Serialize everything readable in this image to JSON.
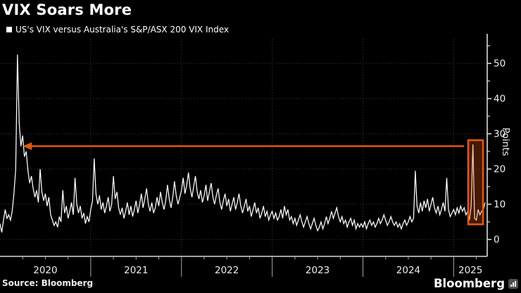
{
  "header": {
    "title": "VIX Soars More",
    "legend_label": "US's VIX versus Australia's S&P/ASX 200 VIX Index"
  },
  "footer": {
    "source": "Source: Bloomberg",
    "brand": "Bloomberg"
  },
  "colors": {
    "background": "#000000",
    "line": "#ffffff",
    "accent_orange": "#e4570c",
    "highlight_fill_opacity": 0.3,
    "grid": "#3c3c3c",
    "axis": "#d9d9d9",
    "divider": "#a6a6a6",
    "text": "#f0f0f0"
  },
  "chart_data": {
    "type": "line",
    "title": "VIX Soars More",
    "series_label": "US's VIX versus Australia's S&P/ASX 200 VIX Index",
    "ylabel": "Points",
    "ylim": [
      0,
      57
    ],
    "yticks_major": [
      0,
      10,
      20,
      30,
      40,
      50
    ],
    "yticks_minor": [
      5,
      15,
      25,
      35,
      45,
      55
    ],
    "y_axis_side": "right",
    "grid": "dotted",
    "legend_position": "top-left",
    "x_year_labels": [
      "2020",
      "2021",
      "2022",
      "2023",
      "2024",
      "2025"
    ],
    "points_per_year": 52,
    "x_frequency": "weekly",
    "values": [
      4.5,
      2.0,
      5.5,
      8.5,
      6.0,
      7.0,
      5.5,
      8.0,
      13.0,
      20.0,
      52.5,
      33.0,
      26.5,
      29.5,
      23.5,
      25.0,
      19.5,
      16.0,
      18.0,
      14.5,
      12.0,
      14.0,
      10.5,
      20.0,
      13.5,
      11.0,
      13.0,
      9.5,
      12.0,
      7.0,
      5.5,
      4.0,
      5.0,
      3.5,
      6.5,
      5.0,
      14.0,
      7.5,
      9.5,
      6.0,
      8.0,
      10.5,
      7.0,
      17.5,
      10.0,
      7.5,
      9.5,
      6.0,
      7.5,
      4.5,
      6.5,
      5.0,
      8.5,
      11.0,
      23.0,
      13.0,
      10.0,
      12.5,
      8.5,
      10.5,
      7.5,
      9.5,
      12.0,
      8.0,
      10.0,
      18.0,
      11.5,
      13.5,
      9.0,
      7.0,
      9.0,
      6.0,
      8.0,
      10.5,
      7.0,
      9.5,
      6.5,
      8.5,
      11.0,
      7.5,
      10.0,
      13.0,
      9.0,
      11.5,
      14.5,
      10.0,
      8.0,
      10.5,
      7.5,
      9.0,
      12.0,
      9.5,
      13.5,
      10.5,
      8.5,
      11.0,
      15.5,
      11.5,
      9.0,
      12.0,
      16.5,
      12.5,
      10.0,
      12.0,
      14.0,
      17.5,
      13.0,
      15.5,
      19.0,
      14.5,
      12.0,
      15.0,
      18.0,
      13.5,
      11.5,
      14.0,
      10.5,
      12.5,
      15.5,
      11.0,
      13.5,
      16.0,
      12.0,
      10.0,
      12.5,
      14.5,
      10.5,
      8.5,
      11.0,
      13.0,
      9.5,
      11.5,
      8.0,
      10.0,
      12.0,
      8.5,
      10.5,
      13.0,
      9.5,
      7.5,
      9.5,
      11.5,
      8.0,
      9.5,
      6.5,
      8.5,
      10.5,
      7.5,
      9.0,
      6.0,
      7.5,
      9.5,
      6.5,
      8.0,
      5.5,
      7.0,
      8.0,
      6.0,
      7.5,
      5.5,
      6.5,
      8.5,
      6.0,
      9.5,
      7.0,
      8.5,
      5.5,
      6.5,
      4.5,
      6.0,
      4.0,
      5.5,
      7.0,
      5.0,
      3.5,
      5.0,
      6.5,
      4.5,
      3.0,
      4.5,
      6.0,
      4.0,
      2.5,
      3.5,
      5.0,
      3.0,
      4.5,
      6.5,
      4.5,
      6.0,
      8.0,
      6.0,
      7.5,
      9.0,
      6.5,
      5.0,
      6.5,
      4.5,
      5.5,
      3.5,
      5.0,
      6.0,
      4.0,
      5.5,
      3.0,
      4.5,
      3.5,
      4.5,
      3.5,
      5.0,
      3.0,
      4.5,
      5.5,
      4.0,
      5.0,
      3.5,
      4.5,
      6.0,
      4.5,
      5.5,
      7.0,
      5.5,
      4.0,
      5.0,
      6.5,
      5.0,
      4.0,
      5.0,
      3.5,
      4.5,
      3.0,
      4.5,
      5.5,
      4.0,
      5.0,
      6.5,
      5.0,
      6.0,
      19.5,
      9.5,
      7.5,
      10.5,
      8.0,
      11.0,
      9.0,
      11.5,
      8.0,
      10.0,
      12.0,
      9.0,
      7.5,
      9.5,
      7.0,
      8.5,
      10.5,
      8.0,
      17.5,
      8.5,
      6.5,
      7.5,
      8.5,
      7.0,
      9.0,
      7.5,
      9.5,
      8.0,
      9.0,
      7.0,
      8.0,
      5.5,
      9.5,
      27.0,
      6.0,
      5.5,
      8.5,
      7.0,
      8.0,
      8.5,
      10.5
    ],
    "annotations": {
      "arrow": {
        "y_value": 26.5,
        "from_index": 266,
        "to_index": 13
      },
      "highlight_box": {
        "from_index": 268.3,
        "to_index": 276.8,
        "y_min": 4.3,
        "y_max": 28.2
      }
    }
  }
}
